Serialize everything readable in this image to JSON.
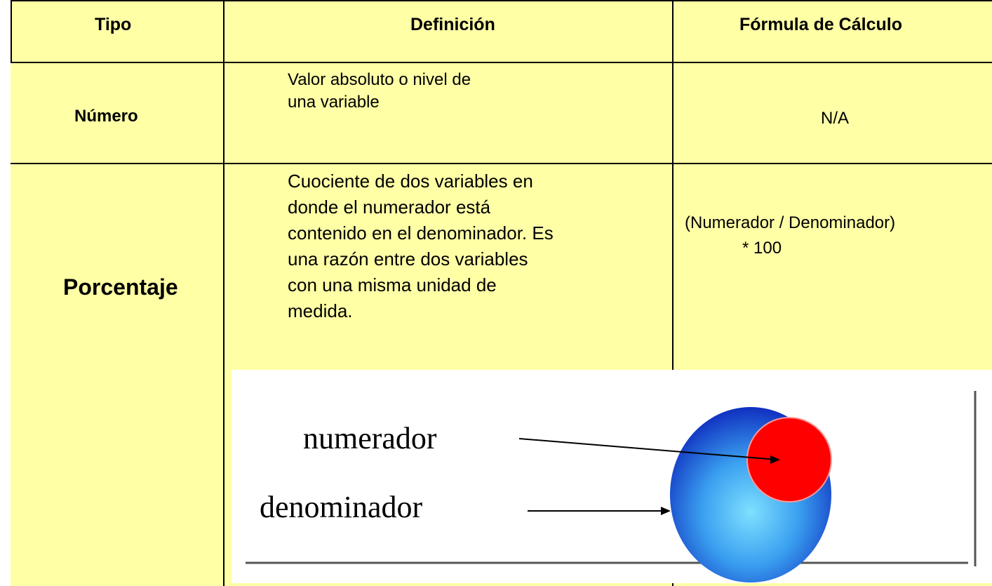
{
  "table": {
    "columns": [
      "Tipo",
      "Definición",
      "Fórmula de Cálculo"
    ],
    "rows": [
      {
        "type": "Número",
        "definition": [
          "Valor absoluto o nivel de",
          "una variable"
        ],
        "formula": [
          "N/A"
        ]
      },
      {
        "type": "Porcentaje",
        "definition": [
          "Cuociente de dos variables en",
          "donde el numerador está",
          "contenido en el denominador. Es",
          "una razón entre dos variables",
          "con una misma unidad de",
          "medida."
        ],
        "formula": [
          "(Numerador / Denominador)",
          "* 100"
        ]
      }
    ]
  },
  "diagram": {
    "labels": [
      "numerador",
      "denominador"
    ]
  }
}
